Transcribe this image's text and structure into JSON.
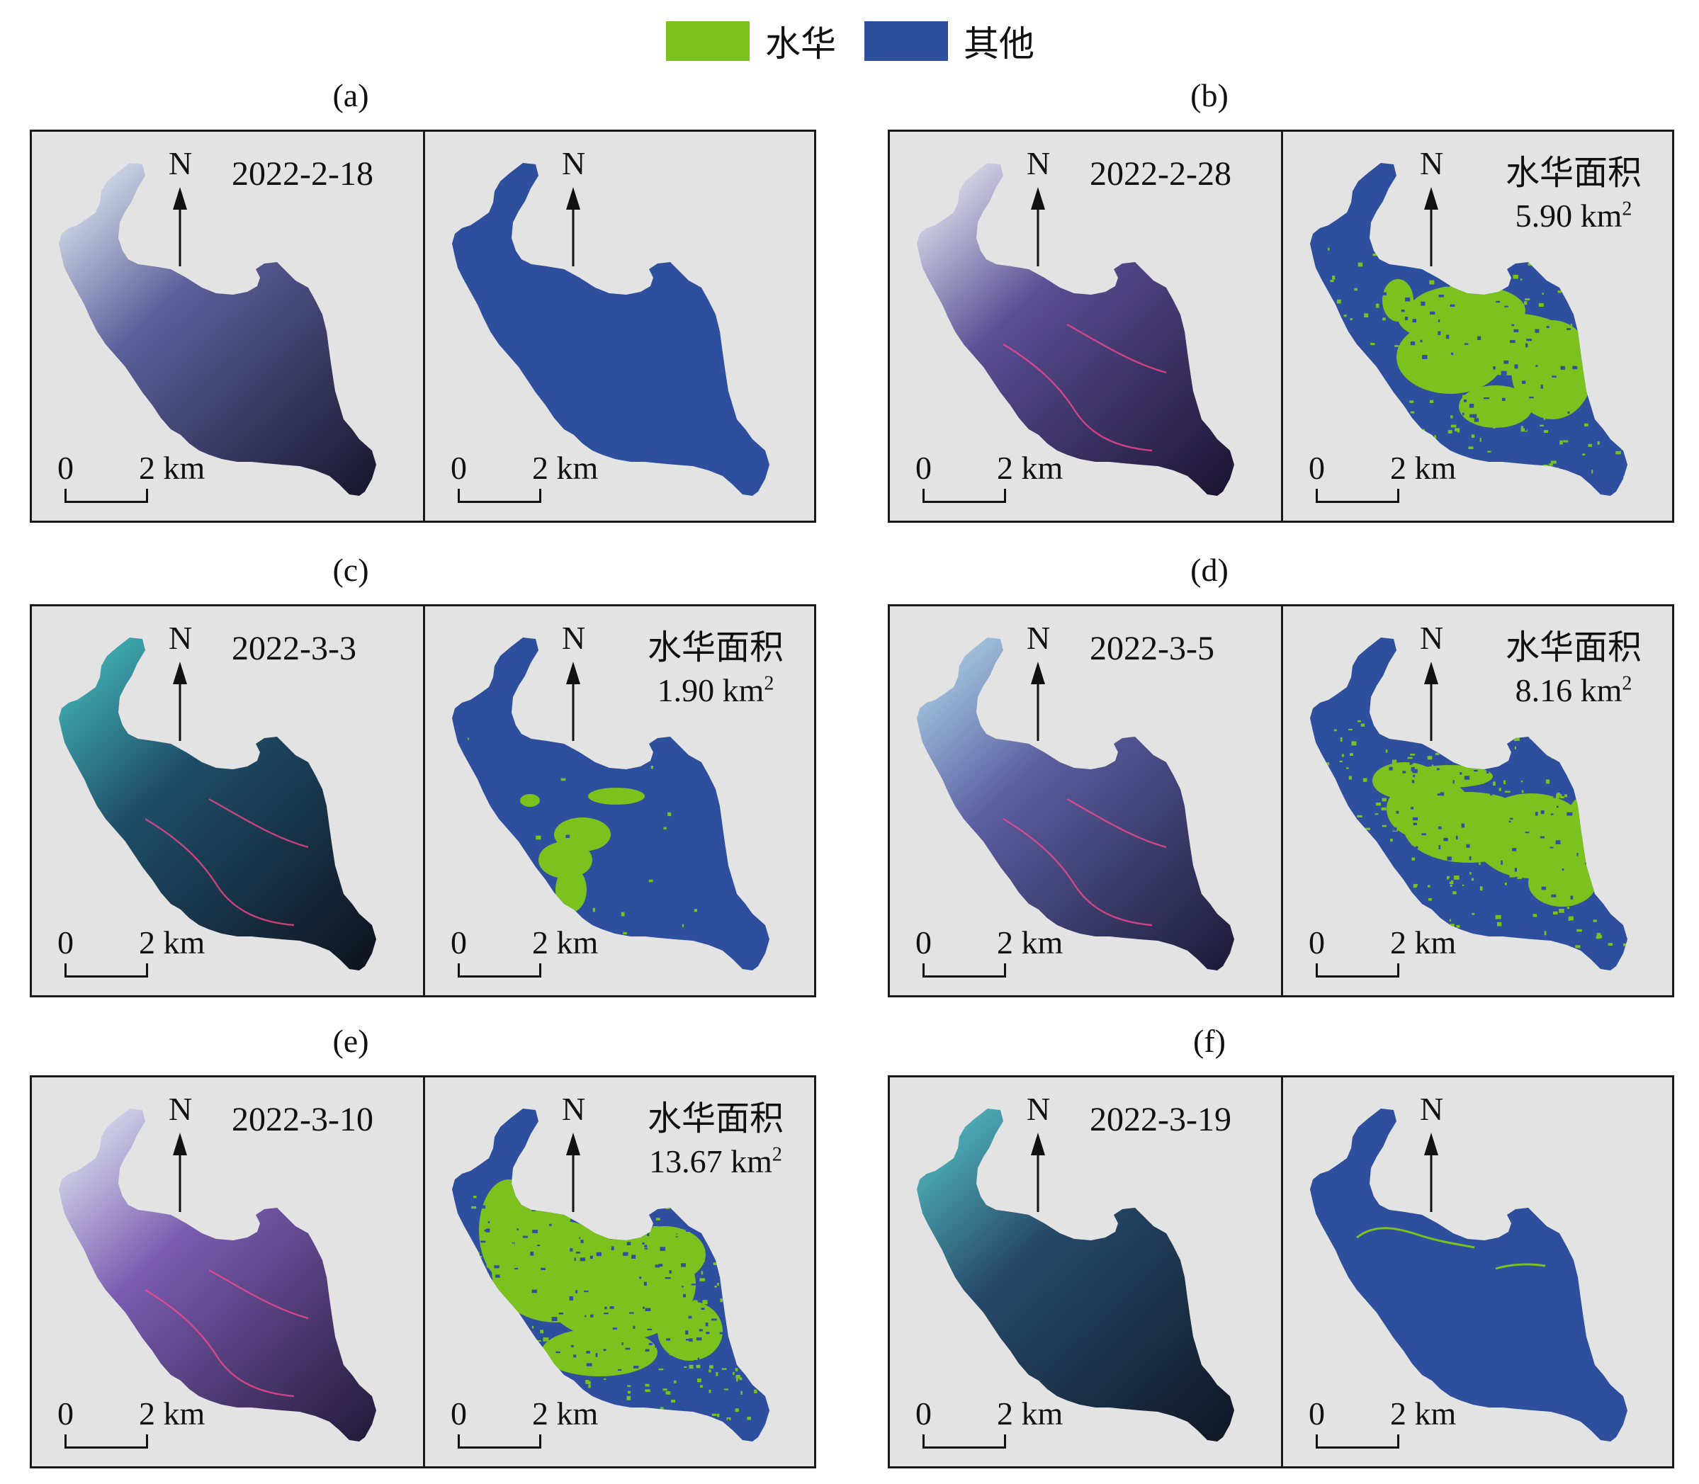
{
  "legend": [
    {
      "label": "水华",
      "color": "#7cc21e"
    },
    {
      "label": "其他",
      "color": "#2d4f9e"
    }
  ],
  "north_label": "N",
  "scale": {
    "zero": "0",
    "two": "2 km"
  },
  "area_title": "水华面积",
  "area_unit": "km",
  "area_exponent": "2",
  "colors": {
    "panel_bg": "#e4e3e3",
    "other": "#2d4f9e",
    "bloom": "#7cc21e",
    "border": "#1a1a1a",
    "algae_trace": "#ff4a8c"
  },
  "panels": [
    {
      "id": "a",
      "caption": "(a)",
      "date": "2022-2-18",
      "bloom_area": "",
      "satellite_colors": {
        "top": "#e6f0f6",
        "mid": "#5b5f9a",
        "bottom": "#1a1830"
      },
      "algae_traces": 0
    },
    {
      "id": "b",
      "caption": "(b)",
      "date": "2022-2-28",
      "bloom_area": "5.90",
      "satellite_colors": {
        "top": "#eef2f8",
        "mid": "#5a4e94",
        "bottom": "#1c1634"
      },
      "algae_traces": 1
    },
    {
      "id": "c",
      "caption": "(c)",
      "date": "2022-3-3",
      "bloom_area": "1.90",
      "satellite_colors": {
        "top": "#46bdbd",
        "mid": "#1f4e6a",
        "bottom": "#0f1420"
      },
      "algae_traces": 1
    },
    {
      "id": "d",
      "caption": "(d)",
      "date": "2022-3-5",
      "bloom_area": "8.16",
      "satellite_colors": {
        "top": "#b0d8ea",
        "mid": "#5a5da0",
        "bottom": "#1e1c3a"
      },
      "algae_traces": 1
    },
    {
      "id": "e",
      "caption": "(e)",
      "date": "2022-3-10",
      "bloom_area": "13.67",
      "satellite_colors": {
        "top": "#e2ecf4",
        "mid": "#7a5bb0",
        "bottom": "#241c3c"
      },
      "algae_traces": 1
    },
    {
      "id": "f",
      "caption": "(f)",
      "date": "2022-3-19",
      "bloom_area": "",
      "satellite_colors": {
        "top": "#56c2c6",
        "mid": "#274a6a",
        "bottom": "#101826"
      },
      "algae_traces": 0
    }
  ]
}
